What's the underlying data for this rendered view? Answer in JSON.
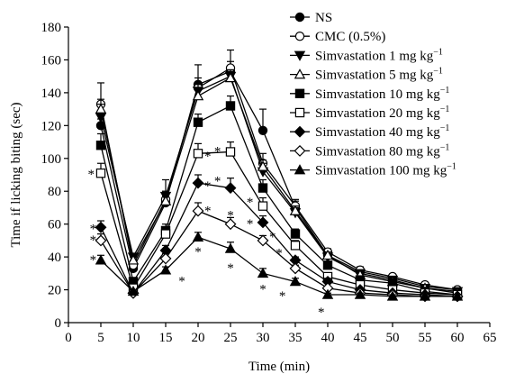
{
  "chart_data": {
    "type": "line",
    "title": "",
    "xlabel": "Time (min)",
    "ylabel": "Time if licking biting (sec)",
    "xlim": [
      0,
      65
    ],
    "ylim": [
      0,
      180
    ],
    "xticks": [
      "0",
      "5",
      "10",
      "15",
      "20",
      "25",
      "30",
      "35",
      "40",
      "45",
      "50",
      "55",
      "60",
      "65"
    ],
    "yticks": [
      "0",
      "20",
      "40",
      "60",
      "80",
      "100",
      "120",
      "140",
      "160",
      "180"
    ],
    "grid": false,
    "legend_position": "top-right",
    "x": [
      5,
      10,
      15,
      20,
      25,
      30,
      35,
      40,
      45,
      50,
      55,
      60
    ],
    "series": [
      {
        "name": "NS",
        "marker": "circle-filled",
        "values": [
          120,
          33,
          73,
          145,
          153,
          117,
          70,
          41,
          31,
          27,
          22,
          20
        ],
        "errors": [
          4,
          2,
          4,
          12,
          6,
          13,
          4,
          3,
          2,
          2,
          1,
          1
        ]
      },
      {
        "name": "CMC (0.5%)",
        "marker": "circle-open",
        "values": [
          133,
          35,
          75,
          143,
          155,
          97,
          71,
          43,
          32,
          28,
          23,
          20
        ],
        "errors": [
          13,
          3,
          5,
          6,
          11,
          6,
          4,
          2,
          2,
          1,
          1,
          1
        ]
      },
      {
        "name": "Simvastation 1 mg kg",
        "unit_sup": "−1",
        "marker": "triangle-down-filled",
        "values": [
          125,
          40,
          77,
          141,
          150,
          92,
          67,
          40,
          30,
          26,
          21,
          19
        ],
        "errors": [
          8,
          2,
          10,
          4,
          4,
          5,
          3,
          2,
          2,
          1,
          1,
          1
        ]
      },
      {
        "name": "Simvastation 5 mg kg",
        "unit_sup": "−1",
        "marker": "triangle-up-open",
        "values": [
          130,
          38,
          74,
          138,
          149,
          95,
          68,
          41,
          29,
          25,
          21,
          18
        ],
        "errors": [
          6,
          2,
          6,
          5,
          4,
          4,
          3,
          2,
          2,
          1,
          1,
          1
        ]
      },
      {
        "name": "Simvastation 10 mg kg",
        "unit_sup": "−1",
        "marker": "square-filled",
        "values": [
          108,
          25,
          56,
          122,
          132,
          82,
          54,
          35,
          26,
          24,
          19,
          17
        ],
        "errors": [
          7,
          2,
          4,
          5,
          6,
          5,
          3,
          2,
          2,
          1,
          1,
          1
        ]
      },
      {
        "name": "Simvastation 20 mg kg",
        "unit_sup": "−1",
        "marker": "square-open",
        "values": [
          91,
          21,
          54,
          103,
          104,
          71,
          47,
          28,
          23,
          20,
          18,
          17
        ],
        "errors": [
          6,
          2,
          4,
          6,
          6,
          5,
          3,
          2,
          1,
          1,
          1,
          1
        ]
      },
      {
        "name": "Simvastation 40 mg kg",
        "unit_sup": "−1",
        "marker": "diamond-filled",
        "values": [
          58,
          18,
          44,
          85,
          82,
          61,
          38,
          25,
          20,
          18,
          17,
          16
        ],
        "errors": [
          4,
          1,
          3,
          5,
          6,
          4,
          2,
          2,
          1,
          1,
          1,
          1
        ]
      },
      {
        "name": "Simvastation 80 mg kg",
        "unit_sup": "−1",
        "marker": "diamond-open",
        "values": [
          50,
          18,
          39,
          68,
          60,
          50,
          33,
          21,
          18,
          17,
          16,
          16
        ],
        "errors": [
          4,
          1,
          3,
          5,
          4,
          3,
          2,
          1,
          1,
          1,
          1,
          1
        ]
      },
      {
        "name": "Simvastation 100 mg kg",
        "unit_sup": "−1",
        "marker": "triangle-up-filled",
        "values": [
          38,
          19,
          32,
          52,
          45,
          30,
          25,
          17,
          17,
          16,
          16,
          16
        ],
        "errors": [
          3,
          1,
          2,
          3,
          4,
          3,
          2,
          1,
          1,
          1,
          1,
          1
        ]
      }
    ],
    "annotations": [
      {
        "text": "*",
        "x": 3.5,
        "y": 91
      },
      {
        "text": "*",
        "x": 3.8,
        "y": 58
      },
      {
        "text": "*",
        "x": 3.8,
        "y": 51
      },
      {
        "text": "*",
        "x": 3.8,
        "y": 39
      },
      {
        "text": "*",
        "x": 17.5,
        "y": 26
      },
      {
        "text": "*",
        "x": 21.5,
        "y": 102
      },
      {
        "text": "*",
        "x": 23,
        "y": 105
      },
      {
        "text": "*",
        "x": 21.5,
        "y": 84
      },
      {
        "text": "*",
        "x": 23,
        "y": 87
      },
      {
        "text": "*",
        "x": 21.5,
        "y": 69
      },
      {
        "text": "*",
        "x": 20,
        "y": 44
      },
      {
        "text": "*",
        "x": 25,
        "y": 66
      },
      {
        "text": "*",
        "x": 25,
        "y": 34
      },
      {
        "text": "*",
        "x": 28,
        "y": 74
      },
      {
        "text": "*",
        "x": 28,
        "y": 61
      },
      {
        "text": "*",
        "x": 31.5,
        "y": 53
      },
      {
        "text": "*",
        "x": 30,
        "y": 21
      },
      {
        "text": "*",
        "x": 32.5,
        "y": 43
      },
      {
        "text": "*",
        "x": 33,
        "y": 17
      },
      {
        "text": "*",
        "x": 35,
        "y": 37
      },
      {
        "text": "*",
        "x": 39,
        "y": 7
      }
    ]
  }
}
